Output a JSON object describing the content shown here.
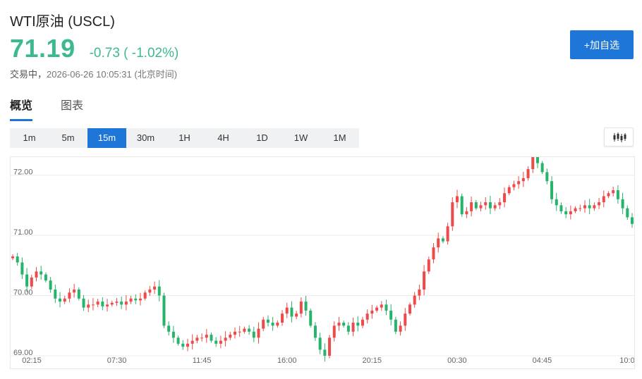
{
  "header": {
    "title": "WTI原油 (USCL)",
    "price": "71.19",
    "change": "-0.73 ( -1.02%)",
    "status_label": "交易中，",
    "timestamp": "2026-06-26 10:05:31",
    "timezone": "(北京时间)",
    "add_button": "+加自选"
  },
  "tabs": [
    {
      "label": "概览",
      "active": true
    },
    {
      "label": "图表",
      "active": false
    }
  ],
  "periods": [
    {
      "label": "1m",
      "active": false
    },
    {
      "label": "5m",
      "active": false
    },
    {
      "label": "15m",
      "active": true
    },
    {
      "label": "30m",
      "active": false
    },
    {
      "label": "1H",
      "active": false
    },
    {
      "label": "4H",
      "active": false
    },
    {
      "label": "1D",
      "active": false
    },
    {
      "label": "1W",
      "active": false
    },
    {
      "label": "1M",
      "active": false
    }
  ],
  "chart_type_icon": "candlestick-icon",
  "colors": {
    "up": "#ee4a4a",
    "down": "#26b36b",
    "accent": "#1e76d8",
    "price": "#3dba8d"
  },
  "chart_data": {
    "type": "candlestick",
    "ylim": [
      69.0,
      72.3
    ],
    "yticks": [
      "72.00",
      "71.00",
      "70.00",
      "69.00"
    ],
    "ytick_values": [
      72.0,
      71.0,
      70.0,
      69.0
    ],
    "xticks": [
      "02:15",
      "07:30",
      "11:45",
      "16:00",
      "20:15",
      "00:30",
      "04:45",
      "10:0"
    ],
    "grid": true,
    "closes": [
      70.65,
      70.55,
      70.35,
      70.15,
      70.3,
      70.4,
      70.35,
      70.25,
      70.1,
      69.95,
      69.9,
      69.95,
      70.05,
      70.1,
      69.95,
      69.8,
      69.85,
      69.85,
      69.9,
      69.82,
      69.85,
      69.88,
      69.9,
      69.85,
      69.9,
      69.95,
      69.92,
      69.95,
      70.05,
      70.1,
      70.15,
      70.0,
      69.5,
      69.4,
      69.3,
      69.2,
      69.15,
      69.2,
      69.25,
      69.3,
      69.3,
      69.35,
      69.25,
      69.2,
      69.25,
      69.3,
      69.35,
      69.4,
      69.4,
      69.45,
      69.4,
      69.3,
      69.45,
      69.6,
      69.55,
      69.5,
      69.55,
      69.7,
      69.8,
      69.65,
      69.7,
      69.9,
      69.75,
      69.5,
      69.3,
      69.1,
      69.0,
      69.3,
      69.5,
      69.55,
      69.5,
      69.4,
      69.55,
      69.5,
      69.6,
      69.7,
      69.75,
      69.8,
      69.85,
      69.75,
      69.6,
      69.4,
      69.5,
      69.7,
      69.85,
      70.0,
      70.1,
      70.4,
      70.6,
      70.8,
      70.95,
      70.9,
      71.15,
      71.55,
      71.65,
      71.35,
      71.4,
      71.55,
      71.45,
      71.5,
      71.55,
      71.45,
      71.5,
      71.55,
      71.7,
      71.8,
      71.85,
      71.9,
      71.95,
      72.1,
      72.3,
      72.2,
      72.05,
      71.9,
      71.6,
      71.5,
      71.4,
      71.35,
      71.4,
      71.45,
      71.45,
      71.5,
      71.45,
      71.5,
      71.55,
      71.65,
      71.7,
      71.75,
      71.6,
      71.45,
      71.3,
      71.19
    ]
  }
}
